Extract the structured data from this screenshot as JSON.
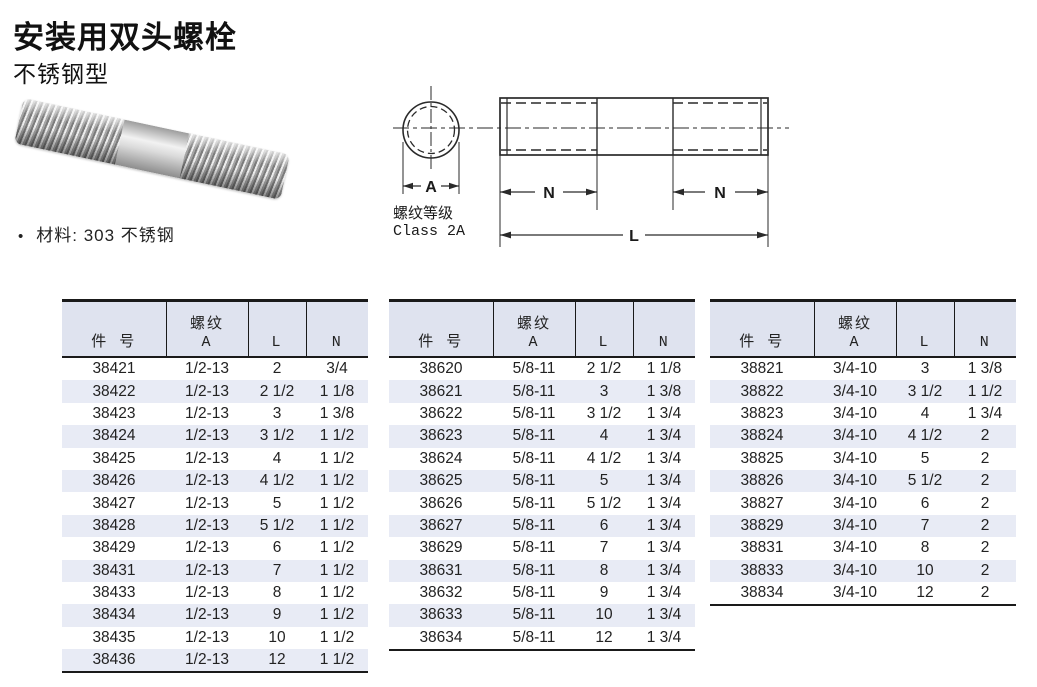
{
  "page": {
    "title": "安装用双头螺栓",
    "subtitle": "不锈钢型",
    "material_bullet": "•",
    "material_note": "材料: 303 不锈钢"
  },
  "diagram": {
    "dim_a_label": "A",
    "dim_n_left_label": "N",
    "dim_n_right_label": "N",
    "dim_l_label": "L",
    "thread_class_line1": "螺纹等级",
    "thread_class_line2": "Class 2A"
  },
  "colors": {
    "line": "#1a1a1a",
    "header_bg": "#dfe3ef",
    "row_stripe": "#e8ebf5",
    "text": "#222222"
  },
  "tables": [
    {
      "headers": {
        "part": "件 号",
        "thread_line1": "螺纹",
        "thread_line2": "A",
        "l": "L",
        "n": "N"
      },
      "rows": [
        [
          "38421",
          "1/2-13",
          "2",
          "3/4"
        ],
        [
          "38422",
          "1/2-13",
          "2 1/2",
          "1 1/8"
        ],
        [
          "38423",
          "1/2-13",
          "3",
          "1 3/8"
        ],
        [
          "38424",
          "1/2-13",
          "3 1/2",
          "1 1/2"
        ],
        [
          "38425",
          "1/2-13",
          "4",
          "1 1/2"
        ],
        [
          "38426",
          "1/2-13",
          "4 1/2",
          "1 1/2"
        ],
        [
          "38427",
          "1/2-13",
          "5",
          "1 1/2"
        ],
        [
          "38428",
          "1/2-13",
          "5 1/2",
          "1 1/2"
        ],
        [
          "38429",
          "1/2-13",
          "6",
          "1 1/2"
        ],
        [
          "38431",
          "1/2-13",
          "7",
          "1 1/2"
        ],
        [
          "38433",
          "1/2-13",
          "8",
          "1 1/2"
        ],
        [
          "38434",
          "1/2-13",
          "9",
          "1 1/2"
        ],
        [
          "38435",
          "1/2-13",
          "10",
          "1 1/2"
        ],
        [
          "38436",
          "1/2-13",
          "12",
          "1 1/2"
        ]
      ]
    },
    {
      "headers": {
        "part": "件 号",
        "thread_line1": "螺纹",
        "thread_line2": "A",
        "l": "L",
        "n": "N"
      },
      "rows": [
        [
          "38620",
          "5/8-11",
          "2 1/2",
          "1 1/8"
        ],
        [
          "38621",
          "5/8-11",
          "3",
          "1 3/8"
        ],
        [
          "38622",
          "5/8-11",
          "3 1/2",
          "1 3/4"
        ],
        [
          "38623",
          "5/8-11",
          "4",
          "1 3/4"
        ],
        [
          "38624",
          "5/8-11",
          "4 1/2",
          "1 3/4"
        ],
        [
          "38625",
          "5/8-11",
          "5",
          "1 3/4"
        ],
        [
          "38626",
          "5/8-11",
          "5 1/2",
          "1 3/4"
        ],
        [
          "38627",
          "5/8-11",
          "6",
          "1 3/4"
        ],
        [
          "38629",
          "5/8-11",
          "7",
          "1 3/4"
        ],
        [
          "38631",
          "5/8-11",
          "8",
          "1 3/4"
        ],
        [
          "38632",
          "5/8-11",
          "9",
          "1 3/4"
        ],
        [
          "38633",
          "5/8-11",
          "10",
          "1 3/4"
        ],
        [
          "38634",
          "5/8-11",
          "12",
          "1 3/4"
        ]
      ]
    },
    {
      "headers": {
        "part": "件 号",
        "thread_line1": "螺纹",
        "thread_line2": "A",
        "l": "L",
        "n": "N"
      },
      "rows": [
        [
          "38821",
          "3/4-10",
          "3",
          "1 3/8"
        ],
        [
          "38822",
          "3/4-10",
          "3 1/2",
          "1 1/2"
        ],
        [
          "38823",
          "3/4-10",
          "4",
          "1 3/4"
        ],
        [
          "38824",
          "3/4-10",
          "4 1/2",
          "2"
        ],
        [
          "38825",
          "3/4-10",
          "5",
          "2"
        ],
        [
          "38826",
          "3/4-10",
          "5 1/2",
          "2"
        ],
        [
          "38827",
          "3/4-10",
          "6",
          "2"
        ],
        [
          "38829",
          "3/4-10",
          "7",
          "2"
        ],
        [
          "38831",
          "3/4-10",
          "8",
          "2"
        ],
        [
          "38833",
          "3/4-10",
          "10",
          "2"
        ],
        [
          "38834",
          "3/4-10",
          "12",
          "2"
        ]
      ]
    }
  ]
}
